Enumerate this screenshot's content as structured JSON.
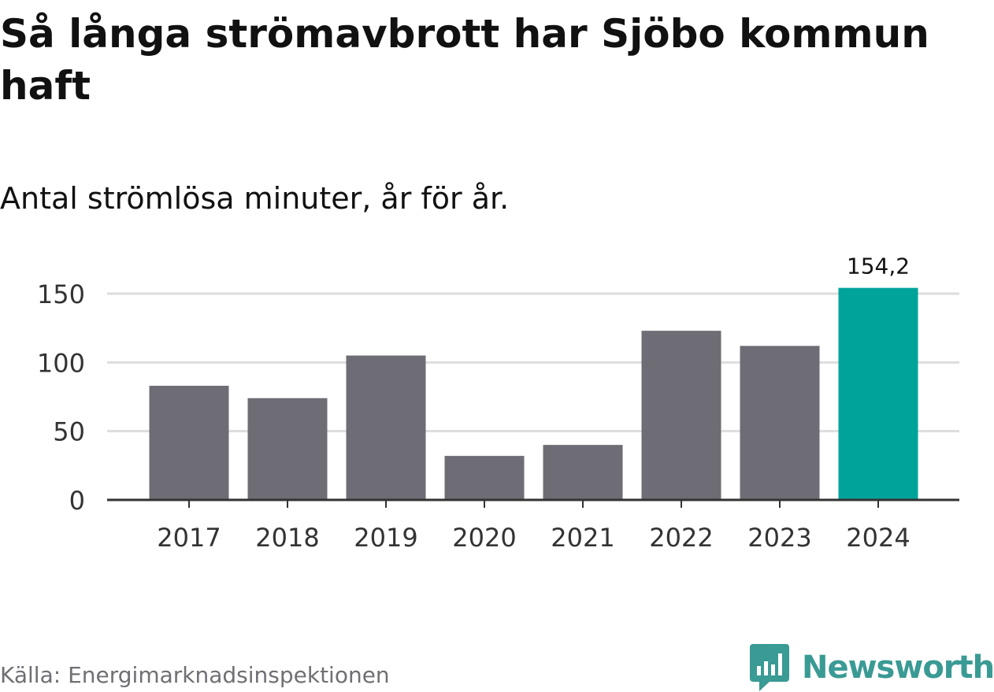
{
  "title": "Så långa strömavbrott har Sjöbo kommun haft",
  "subtitle": "Antal strömlösa minuter, år för år.",
  "source": "Källa: Energimarknadsinspektionen",
  "brand": {
    "name": "Newsworthy",
    "icon": "newsworthy-logo-icon"
  },
  "colors": {
    "bar": "#6e6d75",
    "highlight": "#00a39a",
    "grid": "#dddddd",
    "axis": "#333333",
    "brand": "#3a9a94"
  },
  "chart_data": {
    "type": "bar",
    "categories": [
      "2017",
      "2018",
      "2019",
      "2020",
      "2021",
      "2022",
      "2023",
      "2024"
    ],
    "values": [
      83,
      74,
      105,
      32,
      40,
      123,
      112,
      154.2
    ],
    "highlight_index": 7,
    "data_labels": [
      {
        "index": 7,
        "text": "154,2"
      }
    ],
    "title": "Så långa strömavbrott har Sjöbo kommun haft",
    "subtitle": "Antal strömlösa minuter, år för år.",
    "xlabel": "",
    "ylabel": "",
    "ylim": [
      0,
      150
    ],
    "yticks": [
      0,
      50,
      100,
      150
    ],
    "ytick_labels": [
      "0",
      "50",
      "100",
      "150"
    ],
    "grid": true
  }
}
